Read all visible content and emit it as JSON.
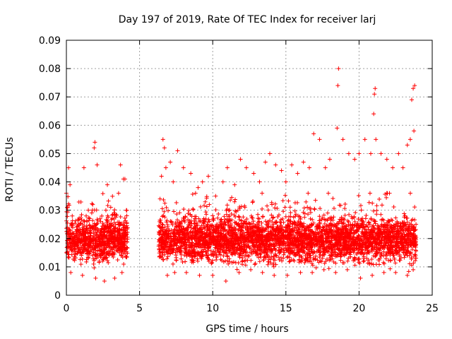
{
  "chart_data": {
    "type": "scatter",
    "title": "Day 197 of 2019, Rate Of TEC Index for receiver larj",
    "xlabel": "GPS time / hours",
    "ylabel": "ROTI / TECUs",
    "xlim": [
      0,
      25
    ],
    "ylim": [
      0,
      0.09
    ],
    "x_ticks": [
      0,
      5,
      10,
      15,
      20,
      25
    ],
    "x_tick_labels": [
      "0",
      "5",
      "10",
      "15",
      "20",
      "25"
    ],
    "y_ticks": [
      0,
      0.01,
      0.02,
      0.03,
      0.04,
      0.05,
      0.06,
      0.07,
      0.08,
      0.09
    ],
    "y_tick_labels": [
      "0",
      "0.01",
      "0.02",
      "0.03",
      "0.04",
      "0.05",
      "0.06",
      "0.07",
      "0.08",
      "0.09"
    ],
    "grid": true,
    "marker": "+",
    "color": "#ff0000",
    "series": [
      {
        "name": "ROTI",
        "description": "dense scatter; data present 0.0-4.2 h and 6.3-23.9 h, gap 4.2-6.3 h; bulk 0.006-0.035",
        "x": [
          0.05,
          0.15,
          0.25,
          0.4,
          0.6,
          0.8,
          1.0,
          1.2,
          1.35,
          1.5,
          1.8,
          1.9,
          1.95,
          2.1,
          2.3,
          2.5,
          2.7,
          2.8,
          2.95,
          3.2,
          3.5,
          3.7,
          3.9,
          4.0,
          4.1,
          6.4,
          6.5,
          6.6,
          6.7,
          6.8,
          7.1,
          7.3,
          7.6,
          8.0,
          8.5,
          9.0,
          9.3,
          9.7,
          10.2,
          10.7,
          11.0,
          11.5,
          11.9,
          12.3,
          12.8,
          13.2,
          13.6,
          13.9,
          14.3,
          14.7,
          15.0,
          15.4,
          15.8,
          16.2,
          16.6,
          16.9,
          17.3,
          17.7,
          18.0,
          18.5,
          18.55,
          18.6,
          18.9,
          19.3,
          19.7,
          20.0,
          20.4,
          20.8,
          21.0,
          21.05,
          21.1,
          21.15,
          21.5,
          21.9,
          22.3,
          22.7,
          23.0,
          23.3,
          23.5,
          23.6,
          23.7,
          23.75,
          23.8,
          0.3,
          1.1,
          2.0,
          2.6,
          3.3,
          3.8,
          6.9,
          7.4,
          8.2,
          9.1,
          10.0,
          10.9,
          11.8,
          12.6,
          13.4,
          14.2,
          15.1,
          16.0,
          16.8,
          17.6,
          18.4,
          19.2,
          20.1,
          20.9,
          21.7,
          22.5,
          23.3,
          23.7,
          0.5,
          1.6,
          2.4,
          3.1,
          4.0,
          7.0,
          8.8,
          10.5,
          12.1,
          13.8,
          15.6,
          17.2,
          18.8,
          20.5,
          22.0,
          23.4
        ],
        "y": [
          0.031,
          0.045,
          0.039,
          0.028,
          0.018,
          0.025,
          0.022,
          0.045,
          0.02,
          0.03,
          0.032,
          0.052,
          0.054,
          0.046,
          0.027,
          0.015,
          0.03,
          0.039,
          0.025,
          0.02,
          0.018,
          0.046,
          0.041,
          0.041,
          0.03,
          0.034,
          0.042,
          0.055,
          0.052,
          0.045,
          0.047,
          0.04,
          0.051,
          0.045,
          0.043,
          0.038,
          0.04,
          0.042,
          0.035,
          0.04,
          0.045,
          0.039,
          0.048,
          0.045,
          0.043,
          0.04,
          0.047,
          0.05,
          0.046,
          0.044,
          0.04,
          0.046,
          0.043,
          0.047,
          0.045,
          0.057,
          0.055,
          0.045,
          0.048,
          0.059,
          0.074,
          0.08,
          0.055,
          0.05,
          0.048,
          0.05,
          0.055,
          0.05,
          0.064,
          0.071,
          0.073,
          0.055,
          0.05,
          0.048,
          0.045,
          0.05,
          0.045,
          0.053,
          0.055,
          0.069,
          0.073,
          0.058,
          0.074,
          0.008,
          0.007,
          0.006,
          0.005,
          0.006,
          0.008,
          0.007,
          0.008,
          0.008,
          0.007,
          0.007,
          0.005,
          0.008,
          0.009,
          0.008,
          0.007,
          0.007,
          0.008,
          0.008,
          0.009,
          0.008,
          0.009,
          0.006,
          0.007,
          0.008,
          0.008,
          0.007,
          0.009,
          0.02,
          0.02,
          0.02,
          0.02,
          0.02,
          0.02,
          0.02,
          0.02,
          0.02,
          0.02,
          0.02,
          0.02,
          0.02,
          0.02,
          0.02,
          0.02
        ]
      }
    ]
  }
}
